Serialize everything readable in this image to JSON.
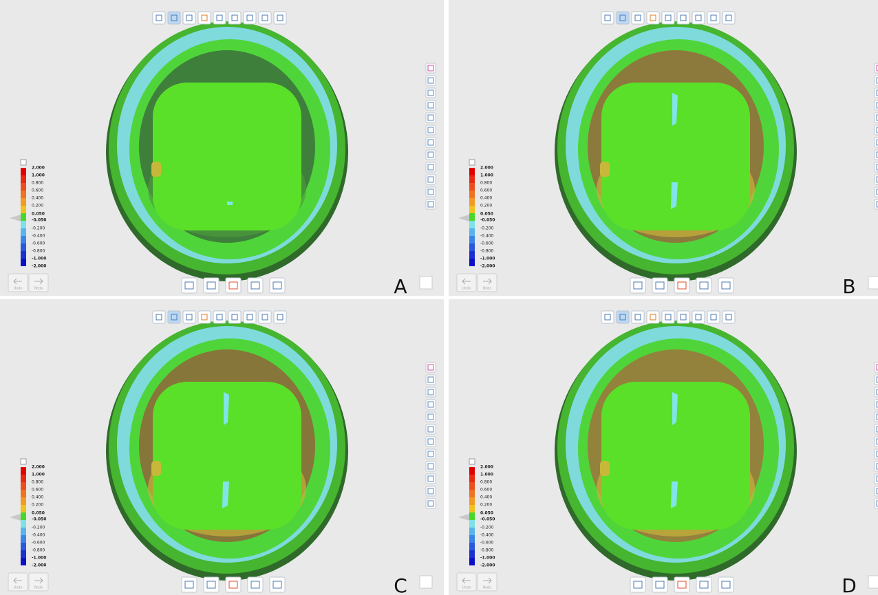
{
  "panels": [
    {
      "label": "A",
      "undo": "Undo",
      "redo": "Redo",
      "scale": [
        "2.000",
        "1.000",
        "0.800",
        "0.600",
        "0.400",
        "0.200",
        "0.050",
        "-0.050",
        "-0.200",
        "-0.400",
        "-0.600",
        "-0.800",
        "-1.000",
        "-2.000"
      ]
    },
    {
      "label": "B",
      "undo": "Undo",
      "redo": "Redo",
      "scale": [
        "2.000",
        "1.000",
        "0.800",
        "0.600",
        "0.400",
        "0.200",
        "0.050",
        "-0.050",
        "-0.200",
        "-0.400",
        "-0.600",
        "-0.800",
        "-1.000",
        "-2.000"
      ]
    },
    {
      "label": "C",
      "undo": "Undo",
      "redo": "Redo",
      "scale": [
        "2.000",
        "1.000",
        "0.800",
        "0.600",
        "0.400",
        "0.200",
        "0.050",
        "-0.050",
        "-0.200",
        "-0.400",
        "-0.600",
        "-0.800",
        "-1.000",
        "-2.000"
      ]
    },
    {
      "label": "D",
      "undo": "Undo",
      "redo": "Redo",
      "scale": [
        "2.000",
        "1.000",
        "0.800",
        "0.600",
        "0.400",
        "0.200",
        "0.050",
        "-0.050",
        "-0.200",
        "-0.400",
        "-0.600",
        "-0.800",
        "-1.000",
        "-2.000"
      ]
    }
  ]
}
